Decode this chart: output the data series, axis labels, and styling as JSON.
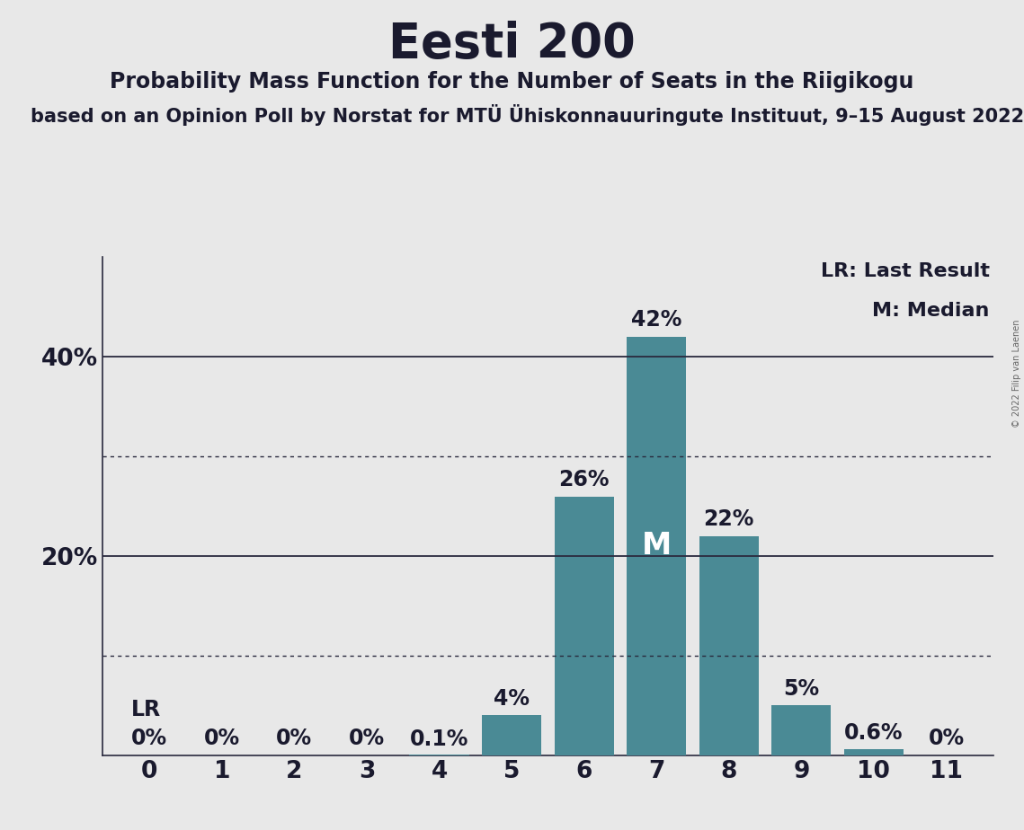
{
  "title": "Eesti 200",
  "subtitle": "Probability Mass Function for the Number of Seats in the Riigikogu",
  "subtitle2": "based on an Opinion Poll by Norstat for MTÜ Ühiskonnauuringute Instituut, 9–15 August 2022",
  "copyright": "© 2022 Filip van Laenen",
  "categories": [
    0,
    1,
    2,
    3,
    4,
    5,
    6,
    7,
    8,
    9,
    10,
    11
  ],
  "values": [
    0.0,
    0.0,
    0.0,
    0.0,
    0.1,
    4.0,
    26.0,
    42.0,
    22.0,
    5.0,
    0.6,
    0.0
  ],
  "bar_color": "#4a8a95",
  "background_color": "#e8e8e8",
  "plot_bg_color": "#e8e8e8",
  "text_color": "#1a1a2e",
  "line_color": "#2a2a3e",
  "median_seat": 7,
  "last_result_seat": 0,
  "ylim_max": 50,
  "solid_hlines": [
    20.0,
    40.0
  ],
  "dotted_hlines": [
    10.0,
    30.0
  ],
  "legend_text1": "LR: Last Result",
  "legend_text2": "M: Median",
  "lr_label": "LR",
  "title_fontsize": 38,
  "subtitle_fontsize": 17,
  "subtitle2_fontsize": 15,
  "bar_label_fontsize": 17,
  "axis_tick_fontsize": 19,
  "legend_fontsize": 16,
  "median_fontsize": 24,
  "ytick_positions": [
    20,
    40
  ],
  "ytick_labels": [
    "20%",
    "40%"
  ],
  "bar_width": 0.82
}
